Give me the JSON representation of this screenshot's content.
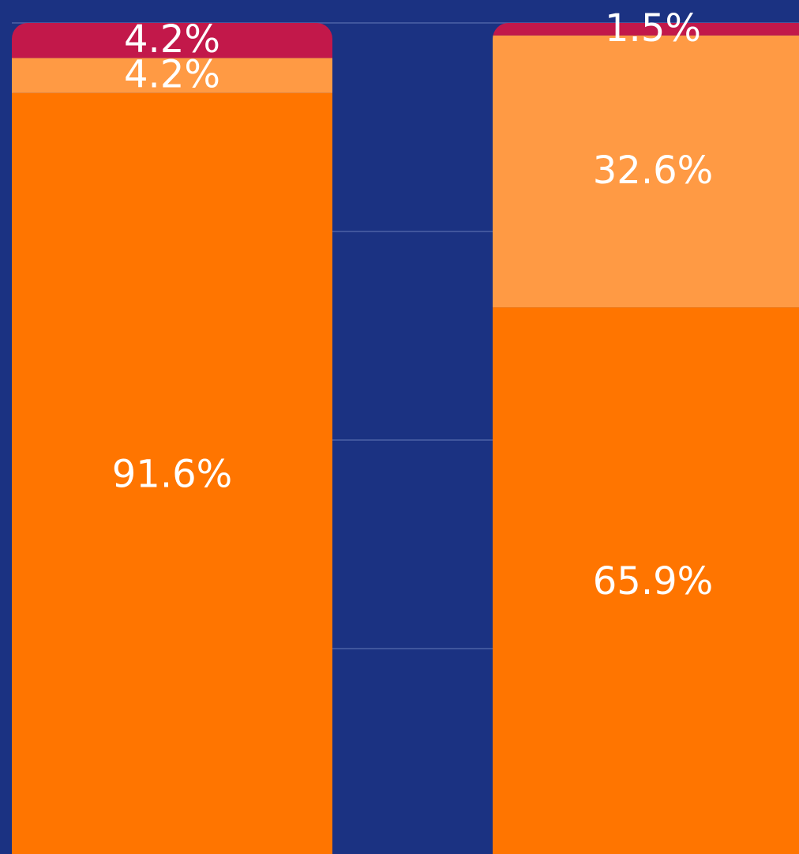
{
  "chart_data": {
    "type": "stacked_bar",
    "categories": [
      null,
      null
    ],
    "series": [
      {
        "color": "#ff7500",
        "values": [
          91.6,
          65.9
        ],
        "value_labels": [
          "91.6%",
          "65.9%"
        ]
      },
      {
        "color": "#ff9a44",
        "values": [
          4.2,
          32.6
        ],
        "value_labels": [
          "4.2%",
          "32.6%"
        ]
      },
      {
        "color": "#c2184a",
        "values": [
          4.2,
          1.5
        ],
        "value_labels": [
          "4.2%",
          "1.5%"
        ]
      }
    ],
    "ylim": [
      0,
      100
    ],
    "yticks": [
      0,
      25,
      50,
      75,
      100
    ],
    "grid": true
  }
}
